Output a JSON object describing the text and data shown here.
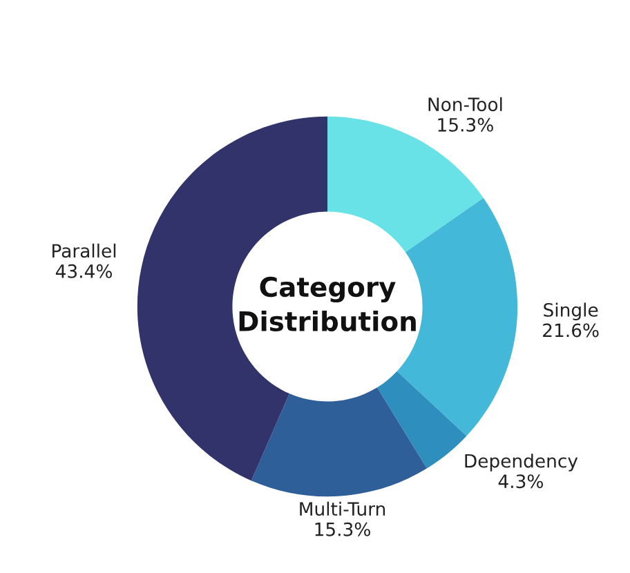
{
  "chart_data": {
    "type": "donut",
    "title": "Category\nDistribution",
    "categories": [
      "Non-Tool",
      "Single",
      "Dependency",
      "Multi-Turn",
      "Parallel"
    ],
    "values": [
      15.3,
      21.6,
      4.3,
      15.3,
      43.4
    ],
    "value_labels": [
      "15.3%",
      "21.6%",
      "4.3%",
      "15.3%",
      "43.4%"
    ],
    "colors": [
      "#68e2e6",
      "#44b8d8",
      "#2e8fbf",
      "#2e5f98",
      "#31336a"
    ],
    "legend": false
  }
}
